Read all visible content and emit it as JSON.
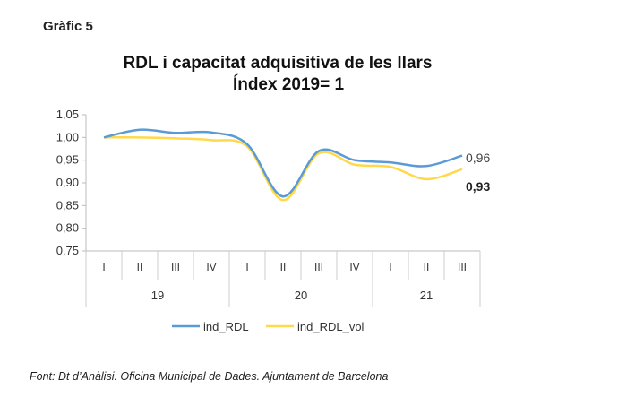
{
  "figure_label": "Gràfic 5",
  "source": "Font: Dt d’Anàlisi. Oficina Municipal de Dades. Ajuntament de Barcelona",
  "chart_data": {
    "type": "line",
    "title": "RDL i capacitat adquisitiva de les llars",
    "subtitle": "Índex 2019= 1",
    "categories": [
      "I",
      "II",
      "III",
      "IV",
      "I",
      "II",
      "III",
      "IV",
      "I",
      "II",
      "III"
    ],
    "groups": [
      {
        "label": "19",
        "count": 4
      },
      {
        "label": "20",
        "count": 4
      },
      {
        "label": "21",
        "count": 3
      }
    ],
    "ylim": [
      0.75,
      1.05
    ],
    "yticks": [
      "0,75",
      "0,80",
      "0,85",
      "0,90",
      "0,95",
      "1,00",
      "1,05"
    ],
    "grid": false,
    "legend": "bottom",
    "series": [
      {
        "name": "ind_RDL",
        "color": "#5B9BD5",
        "values": [
          1.0,
          1.017,
          1.01,
          1.011,
          0.985,
          0.87,
          0.97,
          0.95,
          0.945,
          0.937,
          0.96
        ],
        "end_label": "0,96"
      },
      {
        "name": "ind_RDL_vol",
        "color": "#FFD94A",
        "values": [
          1.0,
          1.0,
          0.998,
          0.994,
          0.98,
          0.862,
          0.965,
          0.94,
          0.935,
          0.908,
          0.93
        ],
        "end_label": "0,93"
      }
    ]
  }
}
